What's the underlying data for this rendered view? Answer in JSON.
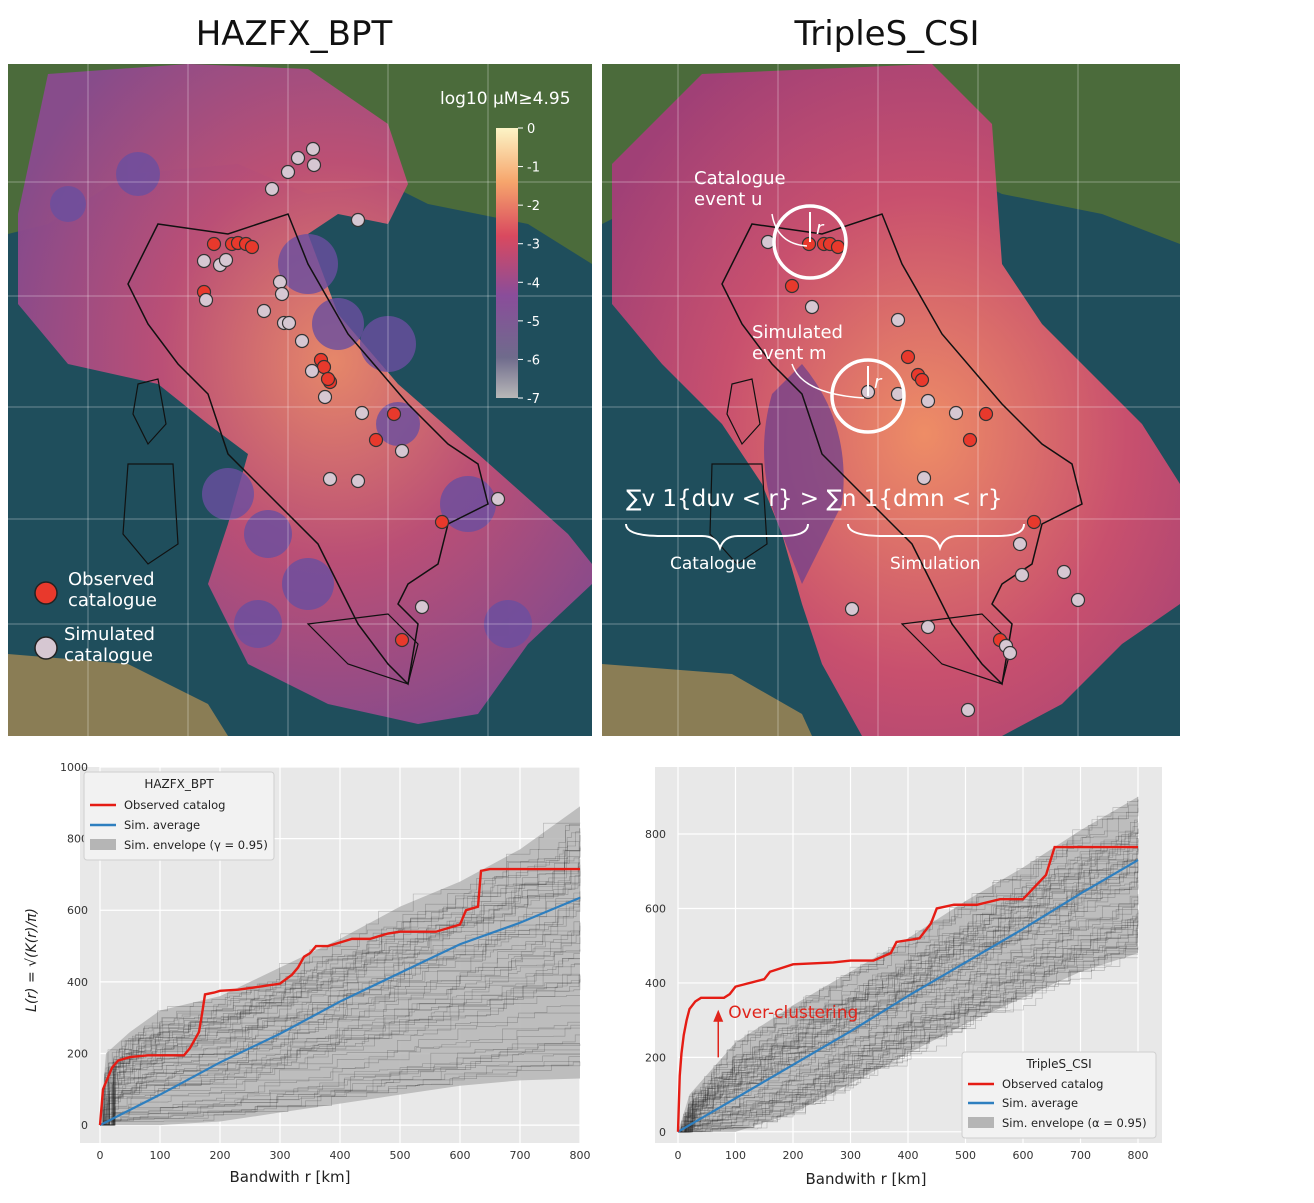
{
  "titles": {
    "left": "HAZFX_BPT",
    "right": "TripleS_CSI"
  },
  "colors": {
    "observed": "#e8392c",
    "simulated": "#d6c7d2",
    "sim_average": "#2e7fbf",
    "envelope": "#b5b5b5",
    "annotation": "#e0241b",
    "plot_bg": "#e8e8e8"
  },
  "map_left": {
    "colorbar_label": "log10 μM≥4.95",
    "colorbar_ticks": [
      "0",
      "-1",
      "-2",
      "-3",
      "-4",
      "-5",
      "-6",
      "-7"
    ],
    "legend": [
      {
        "label_line1": "Observed",
        "label_line2": "catalogue",
        "color": "#e8392c"
      },
      {
        "label_line1": "Simulated",
        "label_line2": "catalogue",
        "color": "#d6c7d2"
      }
    ]
  },
  "map_right": {
    "annotations": {
      "catalogue_event_line1": "Catalogue",
      "catalogue_event_line2": "event u",
      "simulated_event_line1": "Simulated",
      "simulated_event_line2": "event m",
      "radius_label": "r",
      "formula": "∑v 1{duv < r} > ∑n 1{dmn < r}",
      "brace_left_label": "Catalogue",
      "brace_right_label": "Simulation"
    }
  },
  "chart_data": [
    {
      "type": "line",
      "ylabel": "L(r) = √(K(r)/π)",
      "xlabel": "Bandwith r  [km]",
      "xlim": [
        0,
        800
      ],
      "ylim": [
        -50,
        1000
      ],
      "x_ticks": [
        0,
        100,
        200,
        300,
        400,
        500,
        600,
        700,
        800
      ],
      "y_ticks": [
        0,
        200,
        400,
        600,
        800,
        1000
      ],
      "grid": true,
      "legend_title": "HAZFX_BPT",
      "legend_position": "upper-left",
      "series": [
        {
          "name": "Observed catalog",
          "x": [
            0,
            5,
            10,
            20,
            30,
            50,
            80,
            100,
            140,
            150,
            165,
            170,
            175,
            190,
            200,
            230,
            260,
            300,
            320,
            330,
            340,
            350,
            360,
            380,
            400,
            420,
            450,
            480,
            500,
            560,
            600,
            610,
            630,
            635,
            650,
            700,
            800
          ],
          "y": [
            0,
            100,
            120,
            160,
            180,
            190,
            195,
            195,
            195,
            215,
            260,
            310,
            365,
            370,
            375,
            378,
            385,
            395,
            420,
            440,
            470,
            480,
            500,
            500,
            510,
            520,
            520,
            535,
            540,
            540,
            560,
            600,
            610,
            710,
            715,
            715,
            715
          ]
        },
        {
          "name": "Sim. average",
          "x": [
            0,
            100,
            200,
            300,
            400,
            500,
            600,
            700,
            800
          ],
          "y": [
            0,
            85,
            175,
            255,
            345,
            425,
            505,
            565,
            635
          ]
        },
        {
          "name": "Sim. envelope (γ = 0.95)",
          "x": [
            0,
            10,
            50,
            100,
            200,
            300,
            400,
            500,
            600,
            700,
            800
          ],
          "upper": [
            0,
            200,
            260,
            320,
            360,
            440,
            520,
            610,
            680,
            770,
            890
          ],
          "lower": [
            0,
            0,
            0,
            0,
            10,
            35,
            60,
            85,
            110,
            125,
            130
          ]
        }
      ]
    },
    {
      "type": "line",
      "xlabel": "Bandwith r  [km]",
      "xlim": [
        0,
        800
      ],
      "ylim": [
        -30,
        980
      ],
      "x_ticks": [
        0,
        100,
        200,
        300,
        400,
        500,
        600,
        700,
        800
      ],
      "y_ticks": [
        0,
        200,
        400,
        600,
        800
      ],
      "grid": true,
      "legend_title": "TripleS_CSI",
      "legend_position": "lower-right",
      "annotation": {
        "text": "Over-clustering",
        "x": 70,
        "y": 360,
        "arrow_from_y": 200
      },
      "series": [
        {
          "name": "Observed catalog",
          "x": [
            0,
            3,
            6,
            10,
            15,
            20,
            30,
            40,
            80,
            90,
            100,
            150,
            160,
            200,
            270,
            300,
            340,
            370,
            380,
            420,
            440,
            450,
            480,
            520,
            560,
            600,
            640,
            655,
            700,
            800
          ],
          "y": [
            0,
            150,
            210,
            260,
            300,
            330,
            350,
            360,
            360,
            370,
            390,
            410,
            430,
            450,
            455,
            460,
            460,
            480,
            510,
            520,
            560,
            600,
            610,
            610,
            625,
            625,
            690,
            765,
            765,
            765
          ]
        },
        {
          "name": "Sim. average",
          "x": [
            0,
            100,
            200,
            300,
            400,
            500,
            600,
            700,
            800
          ],
          "y": [
            0,
            90,
            180,
            270,
            365,
            455,
            545,
            640,
            730
          ]
        },
        {
          "name": "Sim. envelope (α = 0.95)",
          "x": [
            0,
            20,
            100,
            200,
            300,
            400,
            500,
            600,
            700,
            800
          ],
          "upper": [
            0,
            100,
            240,
            340,
            430,
            520,
            620,
            710,
            810,
            900
          ],
          "lower": [
            0,
            0,
            0,
            50,
            130,
            210,
            290,
            360,
            430,
            480
          ]
        }
      ]
    }
  ]
}
